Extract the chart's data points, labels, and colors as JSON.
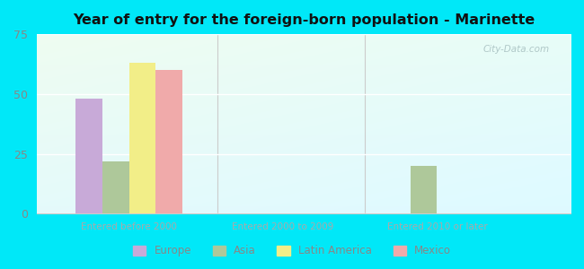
{
  "title": "Year of entry for the foreign-born population - Marinette",
  "groups": [
    "Entered before 2000",
    "Entered 2000 to 2009",
    "Entered 2010 or later"
  ],
  "series": [
    "Europe",
    "Asia",
    "Latin America",
    "Mexico"
  ],
  "values": {
    "Europe": [
      48,
      0,
      0
    ],
    "Asia": [
      22,
      0,
      20
    ],
    "Latin America": [
      63,
      0,
      0
    ],
    "Mexico": [
      60,
      0,
      0
    ]
  },
  "colors": {
    "Europe": "#c8aad8",
    "Asia": "#aec89a",
    "Latin America": "#f2ee88",
    "Mexico": "#f0aaaa"
  },
  "ylim": [
    0,
    75
  ],
  "yticks": [
    0,
    25,
    50,
    75
  ],
  "background_color": "#00e8f8",
  "watermark": "City-Data.com",
  "bar_width": 0.13,
  "group_centers": [
    0.35,
    1.1,
    1.85
  ]
}
